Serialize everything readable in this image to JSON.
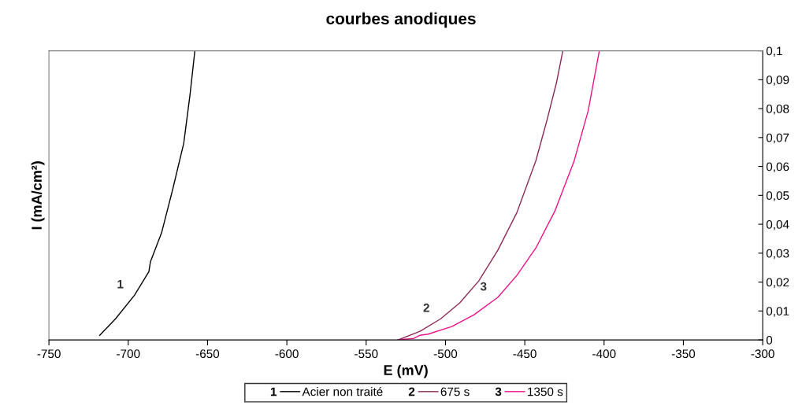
{
  "chart_data": {
    "type": "line",
    "title": "courbes anodiques",
    "xlabel": "E (mV)",
    "ylabel": "I (mA/cm²)",
    "xlim": [
      -750,
      -300
    ],
    "xticks": [
      -750,
      -700,
      -650,
      -600,
      -550,
      -500,
      -450,
      -400,
      -350,
      -300
    ],
    "ylim": [
      0,
      0.1
    ],
    "yticks": [
      {
        "value": 0,
        "label": "0"
      },
      {
        "value": 0.01,
        "label": "0,01"
      },
      {
        "value": 0.02,
        "label": "0,02"
      },
      {
        "value": 0.03,
        "label": "0,03"
      },
      {
        "value": 0.04,
        "label": "0,04"
      },
      {
        "value": 0.05,
        "label": "0,05"
      },
      {
        "value": 0.06,
        "label": "0,06"
      },
      {
        "value": 0.07,
        "label": "0,07"
      },
      {
        "value": 0.08,
        "label": "0,08"
      },
      {
        "value": 0.09,
        "label": "0,09"
      },
      {
        "value": 0.1,
        "label": "0,1"
      }
    ],
    "grid": false,
    "legend": "bottom",
    "marker": "none",
    "line_style": "solid",
    "series": [
      {
        "name": "Acier non traité",
        "color": "#000000",
        "x": [
          -718,
          -708,
          -696,
          -687,
          -686,
          -679,
          -672,
          -665,
          -661,
          -658
        ],
        "values": [
          0.0016,
          0.0073,
          0.0155,
          0.0236,
          0.027,
          0.037,
          0.052,
          0.068,
          0.085,
          0.1
        ]
      },
      {
        "name": "675 s",
        "color": "#8b2a5a",
        "x": [
          -530,
          -516,
          -503,
          -491,
          -479,
          -467,
          -455,
          -443,
          -436,
          -430,
          -426
        ],
        "values": [
          0,
          0.003,
          0.0073,
          0.0128,
          0.0204,
          0.031,
          0.044,
          0.062,
          0.076,
          0.089,
          0.1
        ]
      },
      {
        "name": "1350 s",
        "color": "#ee1188",
        "x": [
          -530,
          -520,
          -516,
          -511,
          -496,
          -482,
          -467,
          -455,
          -443,
          -431,
          -419,
          -410,
          -403
        ],
        "values": [
          0,
          0.0005,
          0.0016,
          0.002,
          0.0046,
          0.0087,
          0.0147,
          0.0223,
          0.0318,
          0.0446,
          0.0617,
          0.0793,
          0.1
        ]
      }
    ],
    "annotations": [
      {
        "text": "1",
        "x": -696,
        "y": 0.0155
      },
      {
        "text": "2",
        "x": -503,
        "y": 0.0073
      },
      {
        "text": "3",
        "x": -467,
        "y": 0.0147
      }
    ]
  }
}
